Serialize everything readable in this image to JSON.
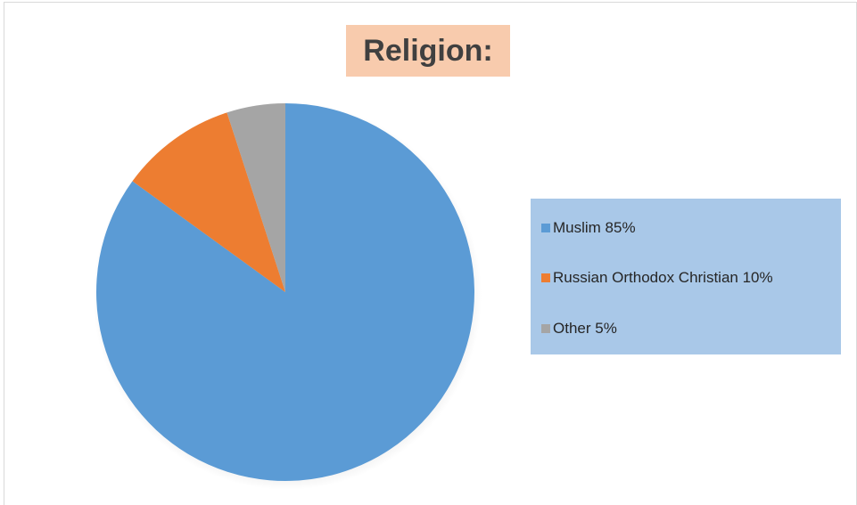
{
  "chart_data": {
    "type": "pie",
    "title": "Religion:",
    "categories": [
      "Muslim",
      "Russian Orthodox Christian",
      "Other"
    ],
    "values": [
      85,
      10,
      5
    ],
    "colors": [
      "#5b9bd5",
      "#ed7d31",
      "#a5a5a5"
    ],
    "legend_labels": [
      "Muslim 85%",
      "Russian Orthodox Christian 10%",
      "Other 5%"
    ],
    "legend_position": "right",
    "start_angle": "12 o'clock, clockwise"
  },
  "colors": {
    "title_background": "#f8cbad",
    "legend_background": "#a9c8e8"
  }
}
